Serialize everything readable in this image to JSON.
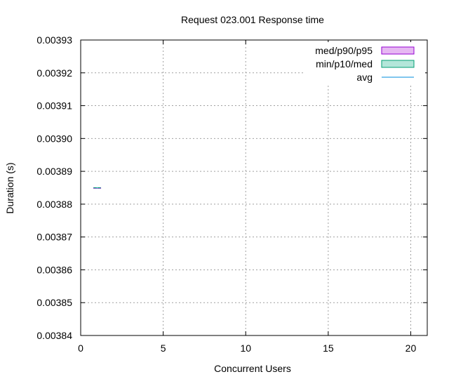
{
  "chart_data": {
    "type": "boxplot",
    "title": "Request 023.001 Response time",
    "xlabel": "Concurrent Users",
    "ylabel": "Duration (s)",
    "xlim": [
      0,
      21
    ],
    "ylim": [
      0.00384,
      0.00393
    ],
    "x_ticks": [
      0,
      5,
      10,
      15,
      20
    ],
    "y_ticks": [
      0.00384,
      0.00385,
      0.00386,
      0.00387,
      0.00388,
      0.00389,
      0.0039,
      0.00391,
      0.00392,
      0.00393
    ],
    "x_tick_labels": [
      "0",
      "5",
      "10",
      "15",
      "20"
    ],
    "y_tick_labels": [
      "0.00384",
      "0.00385",
      "0.00386",
      "0.00387",
      "0.00388",
      "0.00389",
      "0.00390",
      "0.00391",
      "0.00392",
      "0.00393"
    ],
    "grid": true,
    "legend_position": "top-right",
    "legend": [
      {
        "label": "med/p90/p95",
        "kind": "box",
        "fill": "#e6b8f2",
        "stroke": "#9400d3"
      },
      {
        "label": "min/p10/med",
        "kind": "box",
        "fill": "#b3e6d9",
        "stroke": "#009e73"
      },
      {
        "label": "avg",
        "kind": "line",
        "stroke": "#56b4e9"
      }
    ],
    "series": [
      {
        "name": "response time",
        "points": [
          {
            "x": 1,
            "min": 0.003885,
            "p10": 0.003885,
            "med": 0.003885,
            "p90": 0.003885,
            "p95": 0.003885,
            "avg": 0.003885
          }
        ]
      }
    ]
  }
}
